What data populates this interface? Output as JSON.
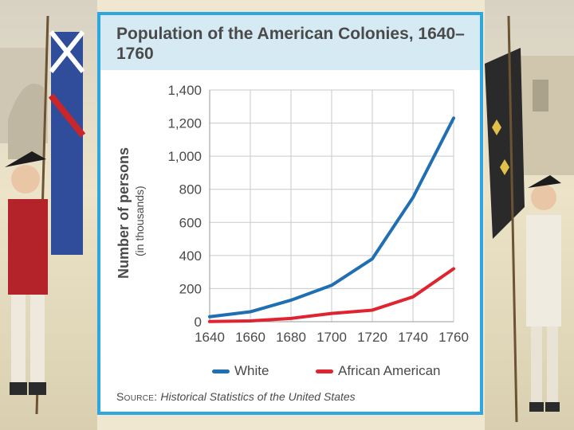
{
  "chart_data": {
    "type": "line",
    "title": "Population of the American Colonies, 1640–1760",
    "ylabel": "Number of persons",
    "ylabel_sub": "(in thousands)",
    "x": [
      1640,
      1660,
      1680,
      1700,
      1720,
      1740,
      1760
    ],
    "x_tick_labels": [
      "1640",
      "1660",
      "1680",
      "1700",
      "1720",
      "1740",
      "1760"
    ],
    "y_tick_labels": [
      "0",
      "200",
      "400",
      "600",
      "800",
      "1,000",
      "1,200",
      "1,400"
    ],
    "y_ticks": [
      0,
      200,
      400,
      600,
      800,
      1000,
      1200,
      1400
    ],
    "ylim": [
      0,
      1400
    ],
    "xlim": [
      1640,
      1760
    ],
    "grid": true,
    "legend_position": "bottom",
    "series": [
      {
        "name": "White",
        "color": "#1f6fb2",
        "values": [
          30,
          60,
          130,
          220,
          380,
          750,
          1230
        ]
      },
      {
        "name": "African American",
        "color": "#e0242f",
        "values": [
          1,
          5,
          20,
          50,
          70,
          150,
          320
        ]
      }
    ],
    "source_label": "Source:",
    "source_text": "Historical Statistics of the United States"
  },
  "colors": {
    "frame_border": "#2ea6df",
    "title_band": "#d6eaf4"
  }
}
